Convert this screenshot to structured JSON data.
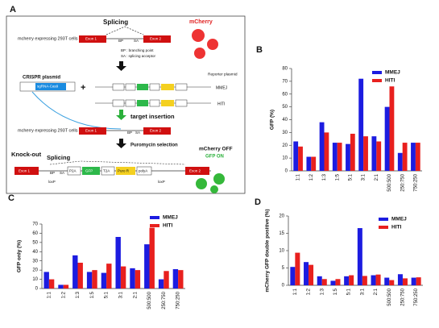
{
  "panel_a": {
    "label": "A",
    "texts": [
      "Splicing",
      "mcherry expressing 293T cells",
      "Exon 1",
      "BP",
      "SA",
      "Exon 2",
      "mCherry",
      "BP : branching point",
      "SA : splicing acceptor",
      "CRISPR plasmid",
      "sgRNA-Cas9",
      "Reporter plasmid",
      "MMEJ",
      "HITI",
      "target insertion",
      "mcherry expressing 293T cells",
      "Exon 1",
      "BP",
      "SA",
      "Exon 2",
      "Puromycin selection",
      "Knock-out",
      "Splicing",
      "Exon 1",
      "BP",
      "SA",
      "P2A",
      "GFP",
      "T2A",
      "Puro R",
      "polyA",
      "loxP",
      "loxP",
      "Exon 2",
      "mCherry OFF",
      "GFP ON"
    ]
  },
  "chart_data": [
    {
      "type": "bar",
      "panel": "B",
      "y_label": "GFP (%)",
      "categories": [
        "1:1",
        "1:2",
        "1:3",
        "1:5",
        "5:1",
        "3:1",
        "2:1",
        "500:500",
        "250:750",
        "750:250"
      ],
      "series": [
        {
          "name": "MMEJ",
          "color": "#1c1ce0",
          "values": [
            23,
            11,
            38,
            22,
            21,
            72,
            27,
            50,
            14,
            22
          ]
        },
        {
          "name": "HITI",
          "color": "#e8201e",
          "values": [
            19,
            11,
            30,
            22,
            29,
            27,
            23,
            66,
            22,
            22
          ]
        }
      ],
      "ylim": [
        0,
        80
      ],
      "yticks": [
        0,
        10,
        20,
        30,
        40,
        50,
        60,
        70,
        80
      ],
      "legend": "upper right"
    },
    {
      "type": "bar",
      "panel": "C",
      "y_label": "GFP only (%)",
      "categories": [
        "1:1",
        "1:2",
        "1:3",
        "1:5",
        "5:1",
        "3:1",
        "2:1",
        "500:500",
        "250:750",
        "750:250"
      ],
      "series": [
        {
          "name": "MMEJ",
          "color": "#1c1ce0",
          "values": [
            18,
            4,
            36,
            18,
            17,
            56,
            22,
            48,
            10,
            21
          ]
        },
        {
          "name": "HITI",
          "color": "#e8201e",
          "values": [
            10,
            4,
            28,
            20,
            27,
            24,
            20,
            66,
            19,
            20
          ]
        }
      ],
      "ylim": [
        0,
        70
      ],
      "yticks": [
        0,
        10,
        20,
        30,
        40,
        50,
        60,
        70
      ],
      "legend": "upper right"
    },
    {
      "type": "bar",
      "panel": "D",
      "y_label": "mCherry GFP double positive (%)",
      "categories": [
        "1:1",
        "1:2",
        "1:3",
        "1:5",
        "5:1",
        "3:1",
        "2:1",
        "500:500",
        "250:750",
        "750:250"
      ],
      "series": [
        {
          "name": "MMEJ",
          "color": "#1c1ce0",
          "values": [
            5.3,
            6.7,
            2.6,
            1.3,
            2.6,
            16.5,
            2.9,
            2.2,
            3.2,
            2.2
          ]
        },
        {
          "name": "HITI",
          "color": "#e8201e",
          "values": [
            9.4,
            5.9,
            1.8,
            1.8,
            2.9,
            2.7,
            3.1,
            1.5,
            2.0,
            2.3
          ]
        }
      ],
      "ylim": [
        0,
        20
      ],
      "yticks": [
        0,
        5,
        10,
        15,
        20
      ],
      "legend": "upper right"
    }
  ]
}
